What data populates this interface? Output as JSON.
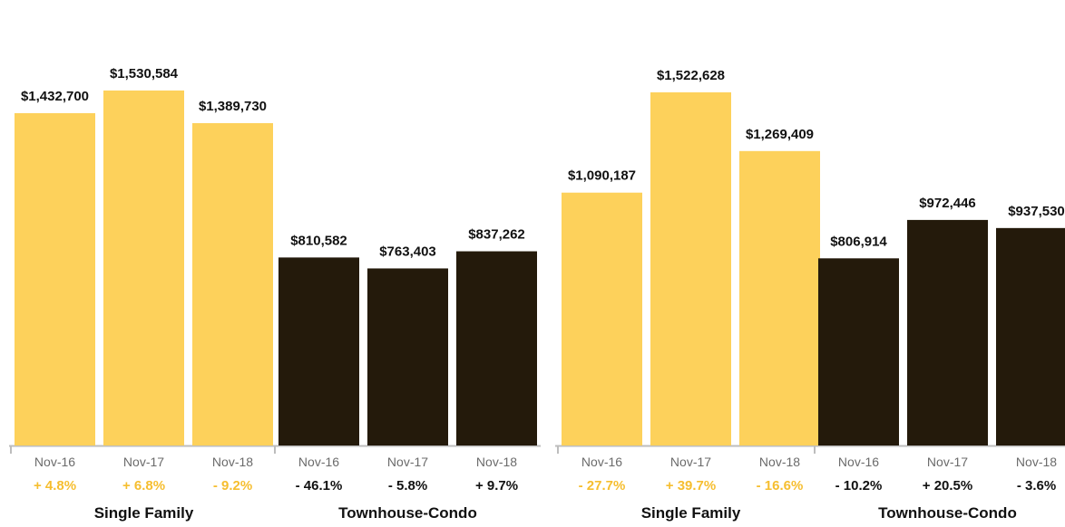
{
  "colors": {
    "single_family": "#FDD15B",
    "townhouse_condo": "#241A0B",
    "change_single_family": "#F6BE2F",
    "change_townhouse_condo": "#111111",
    "axis": "#bdbdbd"
  },
  "chart_data": [
    {
      "type": "bar",
      "title": "",
      "xlabel": "",
      "ylabel": "",
      "ylim": [
        0,
        1600000
      ],
      "grid": false,
      "groups": [
        {
          "name": "Single Family",
          "categories": [
            "Nov-16",
            "Nov-17",
            "Nov-18"
          ],
          "values": [
            1432700,
            1530584,
            1389730
          ],
          "value_labels": [
            "$1,432,700",
            "$1,530,584",
            "$1,389,730"
          ],
          "changes": [
            "+ 4.8%",
            "+ 6.8%",
            "- 9.2%"
          ]
        },
        {
          "name": "Townhouse-Condo",
          "categories": [
            "Nov-16",
            "Nov-17",
            "Nov-18"
          ],
          "values": [
            810582,
            763403,
            837262
          ],
          "value_labels": [
            "$810,582",
            "$763,403",
            "$837,262"
          ],
          "changes": [
            "- 46.1%",
            "- 5.8%",
            "+ 9.7%"
          ]
        }
      ]
    },
    {
      "type": "bar",
      "title": "",
      "xlabel": "",
      "ylabel": "",
      "ylim": [
        0,
        1600000
      ],
      "grid": false,
      "groups": [
        {
          "name": "Single Family",
          "categories": [
            "Nov-16",
            "Nov-17",
            "Nov-18"
          ],
          "values": [
            1090187,
            1522628,
            1269409
          ],
          "value_labels": [
            "$1,090,187",
            "$1,522,628",
            "$1,269,409"
          ],
          "changes": [
            "- 27.7%",
            "+ 39.7%",
            "- 16.6%"
          ]
        },
        {
          "name": "Townhouse-Condo",
          "categories": [
            "Nov-16",
            "Nov-17",
            "Nov-18"
          ],
          "values": [
            806914,
            972446,
            937530
          ],
          "value_labels": [
            "$806,914",
            "$972,446",
            "$937,530"
          ],
          "changes": [
            "- 10.2%",
            "+ 20.5%",
            "- 3.6%"
          ]
        }
      ]
    }
  ]
}
